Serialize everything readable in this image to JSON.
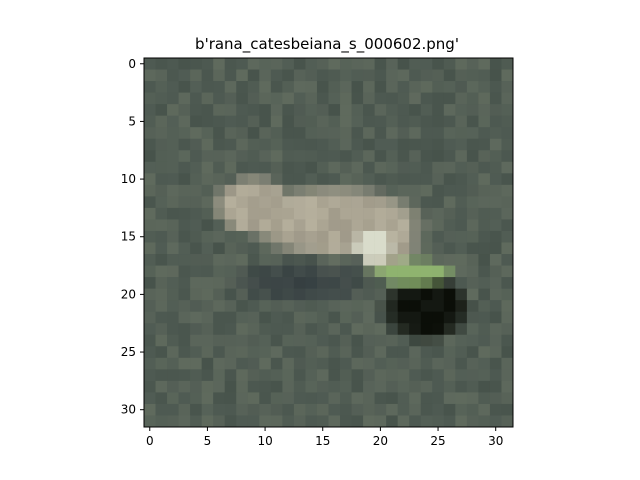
{
  "figure": {
    "title": "b'rana_catesbeiana_s_000602.png'",
    "x_ticks": [
      0,
      5,
      10,
      15,
      20,
      25,
      30
    ],
    "y_ticks": [
      0,
      5,
      10,
      15,
      20,
      25,
      30
    ],
    "image_grid": [
      32,
      32
    ],
    "scene": {
      "subject": "frog",
      "colors": {
        "background": "#4e5a52",
        "background_dark": "#39453d",
        "background_light": "#6b7565",
        "frog_body": "#b7b19e",
        "frog_highlight": "#d9dccb",
        "frog_green": "#8fb36f",
        "shadow": "#141812",
        "shadow_dark": "#0b0e08"
      }
    }
  }
}
